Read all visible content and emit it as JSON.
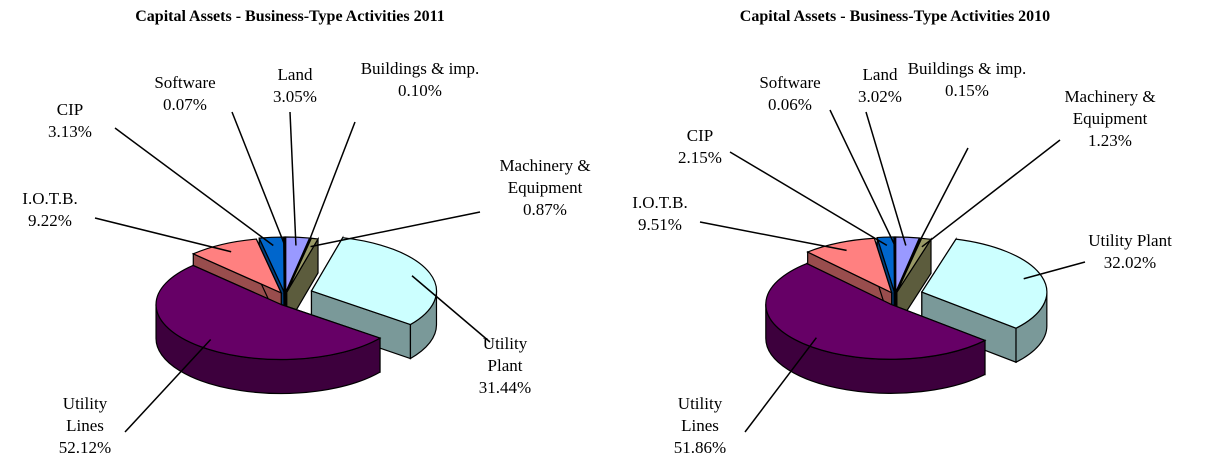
{
  "chart_data": [
    {
      "type": "pie",
      "title": "Capital Assets - Business-Type Activities 2011",
      "categories": [
        "Land",
        "Buildings & imp.",
        "Machinery & Equipment",
        "Utility Plant",
        "Utility Lines",
        "I.O.T.B.",
        "CIP",
        "Software"
      ],
      "values": [
        3.05,
        0.1,
        0.87,
        31.44,
        52.12,
        9.22,
        3.13,
        0.07
      ],
      "value_labels": [
        "3.05%",
        "0.10%",
        "0.87%",
        "31.44%",
        "52.12%",
        "9.22%",
        "3.13%",
        "0.07%"
      ],
      "colors": [
        "#9999ff",
        "#ffffcc",
        "#999966",
        "#ccffff",
        "#660066",
        "#ff8080",
        "#0066cc",
        "#000080"
      ]
    },
    {
      "type": "pie",
      "title": "Capital Assets - Business-Type Activities 2010",
      "categories": [
        "Land",
        "Buildings & imp.",
        "Machinery & Equipment",
        "Utility Plant",
        "Utility Lines",
        "I.O.T.B.",
        "CIP",
        "Software"
      ],
      "values": [
        3.02,
        0.15,
        1.23,
        32.02,
        51.86,
        9.51,
        2.15,
        0.06
      ],
      "value_labels": [
        "3.02%",
        "0.15%",
        "1.23%",
        "32.02%",
        "51.86%",
        "9.51%",
        "2.15%",
        "0.06%"
      ],
      "colors": [
        "#9999ff",
        "#ffffcc",
        "#999966",
        "#ccffff",
        "#660066",
        "#ff8080",
        "#0066cc",
        "#000080"
      ]
    }
  ]
}
